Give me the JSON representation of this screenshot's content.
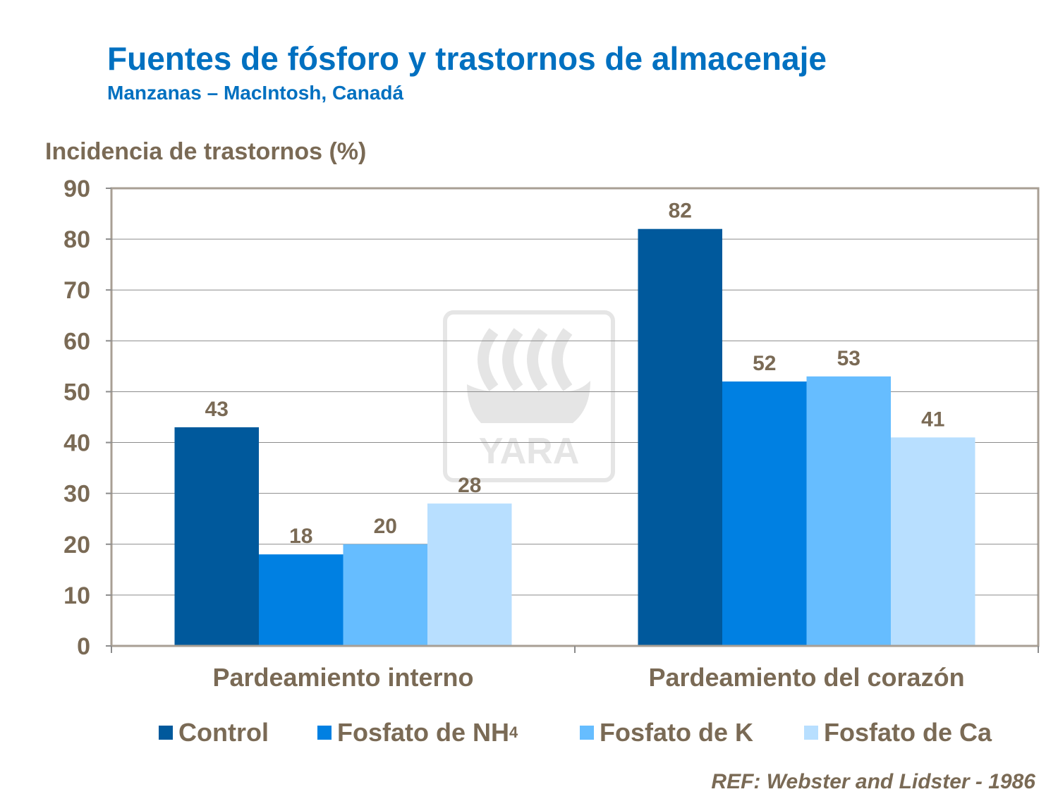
{
  "chart_data": {
    "type": "bar",
    "title": "Fuentes de fósforo y trastornos de almacenaje",
    "subtitle": "Manzanas – MacIntosh, Canadá",
    "ylabel": "Incidencia de trastornos (%)",
    "xlabel": "",
    "ylim": [
      0,
      90
    ],
    "yticks": [
      "0",
      "10",
      "20",
      "30",
      "40",
      "50",
      "60",
      "70",
      "80",
      "90"
    ],
    "grid": true,
    "legend_position": "bottom",
    "categories": [
      "Pardeamiento interno",
      "Pardeamiento del corazón"
    ],
    "series": [
      {
        "name": "Control",
        "name_sub": "",
        "color": "#00599C",
        "values": [
          43,
          82
        ]
      },
      {
        "name": "Fosfato de NH",
        "name_sub": "4",
        "color": "#0080E2",
        "values": [
          18,
          52
        ]
      },
      {
        "name": "Fosfato de K",
        "name_sub": "",
        "color": "#66BDFF",
        "values": [
          20,
          53
        ]
      },
      {
        "name": "Fosfato de Ca",
        "name_sub": "",
        "color": "#B8DFFF",
        "values": [
          28,
          41
        ]
      }
    ],
    "reference": "REF: Webster and Lidster - 1986",
    "watermark": "YARA"
  }
}
